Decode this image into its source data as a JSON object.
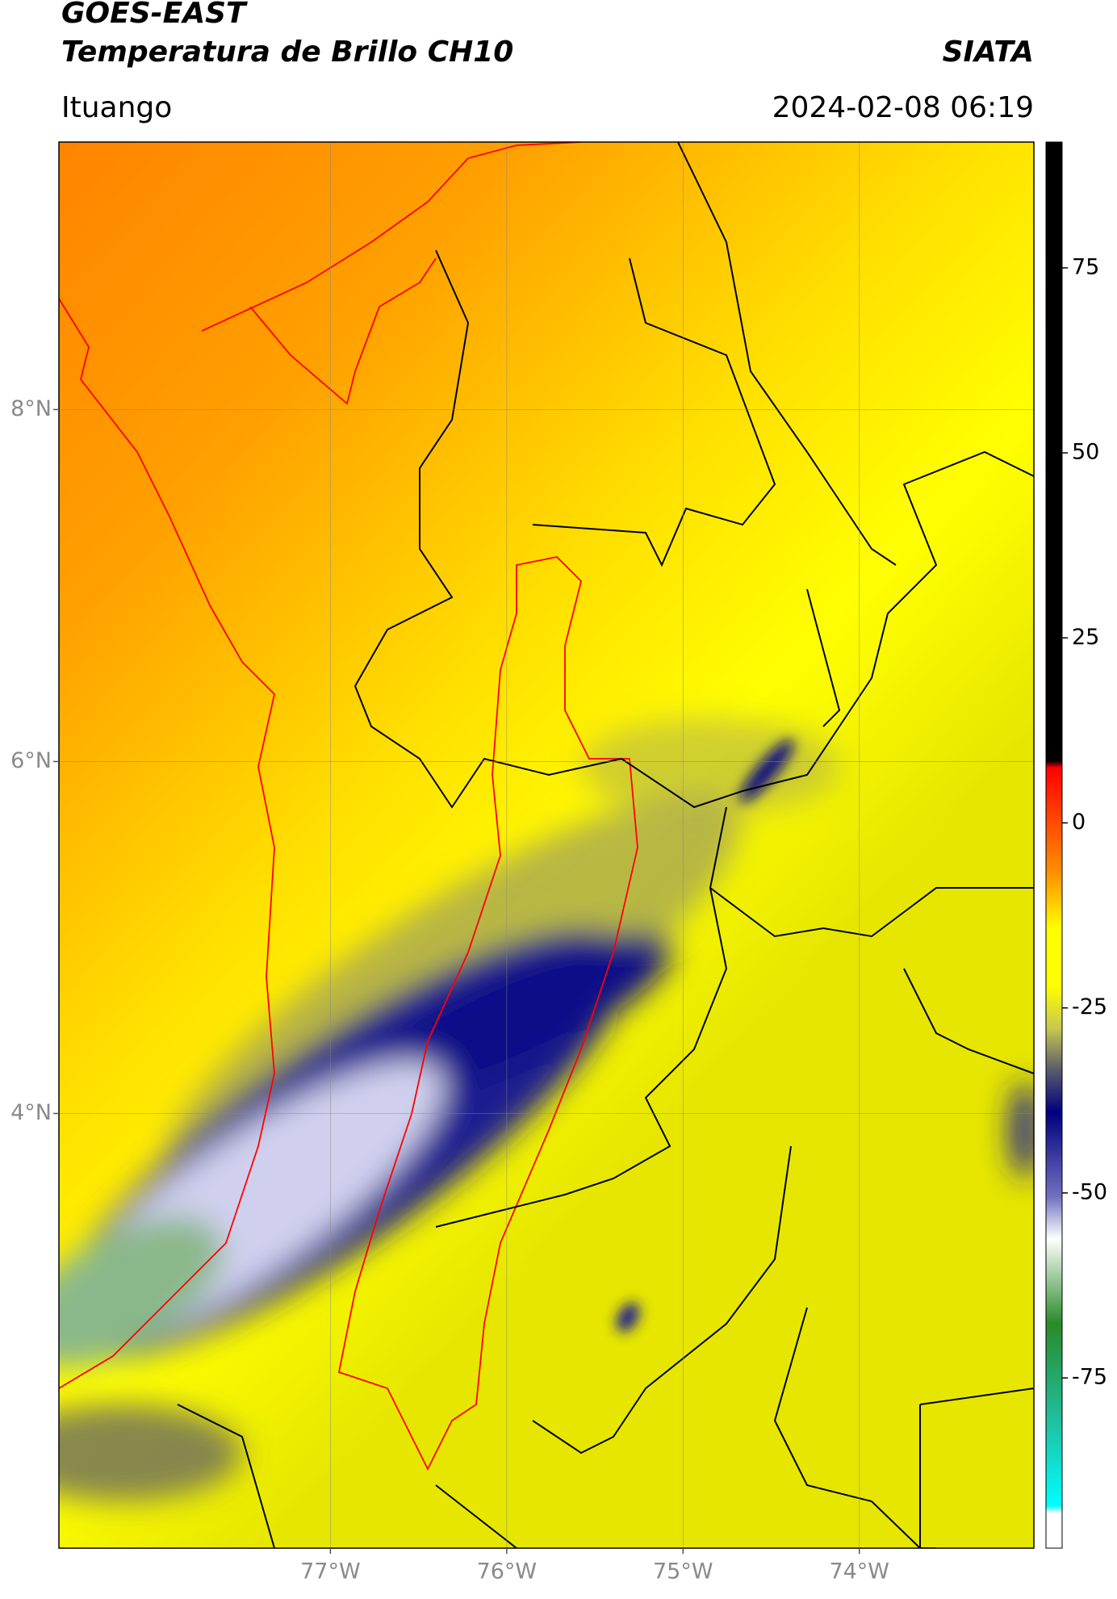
{
  "header": {
    "source": "GOES-EAST",
    "title": "Temperatura de Brillo CH10",
    "brand": "SIATA",
    "region": "Ituango",
    "datetime": "2024-02-08 06:19"
  },
  "map": {
    "lat_range": [
      1.53,
      9.52
    ],
    "lon_range": [
      -78.54,
      -73.01
    ],
    "lat_ticks": [
      {
        "value": 8,
        "label": "8°N"
      },
      {
        "value": 6,
        "label": "6°N"
      },
      {
        "value": 4,
        "label": "4°N"
      }
    ],
    "lon_ticks": [
      {
        "value": -77,
        "label": "77°W"
      },
      {
        "value": -76,
        "label": "76°W"
      },
      {
        "value": -75,
        "label": "75°W"
      },
      {
        "value": -74,
        "label": "74°W"
      }
    ]
  },
  "colorbar": {
    "range": [
      -98,
      92
    ],
    "ticks": [
      75,
      50,
      25,
      0,
      -25,
      -50,
      -75
    ]
  }
}
